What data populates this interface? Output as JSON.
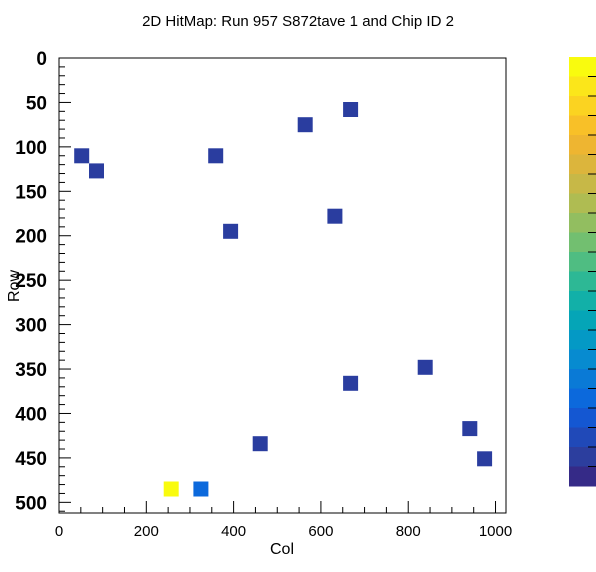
{
  "chart_data": {
    "type": "heatmap",
    "title": "2D HitMap: Run 957 S872tave 1 and Chip ID 2",
    "xlabel": "Col",
    "ylabel": "Row",
    "xlim": [
      0,
      1024
    ],
    "ylim": [
      0,
      512
    ],
    "y_inverted": true,
    "xticks": [
      0,
      200,
      400,
      600,
      800,
      1000
    ],
    "yticks": [
      0,
      50,
      100,
      150,
      200,
      250,
      300,
      350,
      400,
      450,
      500
    ],
    "xtick_labels": [
      "0",
      "200",
      "400",
      "600",
      "800",
      "1000"
    ],
    "ytick_labels": [
      "0",
      "50",
      "100",
      "150",
      "200",
      "250",
      "300",
      "350",
      "400",
      "450",
      "500"
    ],
    "palette": [
      "#352a87",
      "#2c3e9e",
      "#2049b8",
      "#1457d2",
      "#0c69dc",
      "#0a7ad6",
      "#078bd0",
      "#0499c5",
      "#05a5b7",
      "#12b0a8",
      "#2db895",
      "#4fbd82",
      "#72bf70",
      "#92be60",
      "#afbc52",
      "#c7b847",
      "#dcb53c",
      "#eeb531",
      "#f8c028",
      "#fbd321",
      "#fbe61a",
      "#f9fb0e"
    ],
    "points": [
      {
        "x": 668,
        "y": 58,
        "v": 0
      },
      {
        "x": 564,
        "y": 75,
        "v": 0
      },
      {
        "x": 52,
        "y": 110,
        "v": 0
      },
      {
        "x": 359,
        "y": 110,
        "v": 0
      },
      {
        "x": 86,
        "y": 127,
        "v": 0
      },
      {
        "x": 632,
        "y": 178,
        "v": 0
      },
      {
        "x": 393,
        "y": 195,
        "v": 0
      },
      {
        "x": 839,
        "y": 348,
        "v": 0
      },
      {
        "x": 668,
        "y": 366,
        "v": 0
      },
      {
        "x": 941,
        "y": 417,
        "v": 0
      },
      {
        "x": 461,
        "y": 434,
        "v": 0
      },
      {
        "x": 975,
        "y": 451,
        "v": 0
      },
      {
        "x": 257,
        "y": 485,
        "v": 1
      },
      {
        "x": 325,
        "y": 485,
        "v": 0.18
      }
    ]
  }
}
